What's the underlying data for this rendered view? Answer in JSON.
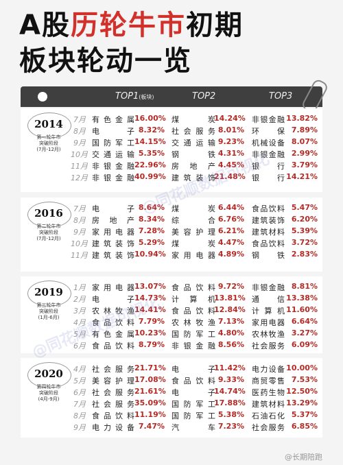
{
  "title": {
    "part1": "A股",
    "part2": "历轮牛市",
    "part3": "初期",
    "line2": "板块轮动一览"
  },
  "header": {
    "top1": "TOP1",
    "top1_note": "(板块)",
    "top2": "TOP2",
    "top3": "TOP3"
  },
  "watermark": "@同花顺数据可视化",
  "credit": "@长期陪跑",
  "colors": {
    "accent": "#d2302a",
    "value": "#b52a25",
    "header_bg": "#3f3f3f"
  },
  "sections": [
    {
      "year": "2014",
      "sub1": "第一轮牛市",
      "sub2": "突破阶段",
      "sub3": "(7月-12月)",
      "rows": [
        {
          "m": "7月",
          "n1": "有色金属",
          "v1": "16.00%",
          "n2": "煤炭",
          "v2": "14.24%",
          "n3": "非银金融",
          "v3": "13.82%"
        },
        {
          "m": "8月",
          "n1": "电子",
          "v1": "8.32%",
          "n2": "社会服务",
          "v2": "8.01%",
          "n3": "环保",
          "v3": "7.89%"
        },
        {
          "m": "9月",
          "n1": "国防军工",
          "v1": "14.15%",
          "n2": "交通运输",
          "v2": "9.23%",
          "n3": "机械设备",
          "v3": "8.07%"
        },
        {
          "m": "10月",
          "n1": "交通运输",
          "v1": "5.35%",
          "n2": "钢铁",
          "v2": "4.31%",
          "n3": "非银金融",
          "v3": "2.99%"
        },
        {
          "m": "11月",
          "n1": "非银金融",
          "v1": "22.96%",
          "n2": "房地产",
          "v2": "4.45%",
          "n3": "银行",
          "v3": "3.79%"
        },
        {
          "m": "12月",
          "n1": "非银金融",
          "v1": "40.99%",
          "n2": "建筑装饰",
          "v2": "21.48%",
          "n3": "银行",
          "v3": "14.21%"
        }
      ]
    },
    {
      "year": "2016",
      "sub1": "第二轮牛市",
      "sub2": "突破阶段",
      "sub3": "(7月-12月)",
      "rows": [
        {
          "m": "7月",
          "n1": "电子",
          "v1": "8.64%",
          "n2": "煤炭",
          "v2": "6.44%",
          "n3": "食品饮料",
          "v3": "5.47%"
        },
        {
          "m": "8月",
          "n1": "房地产",
          "v1": "8.34%",
          "n2": "综合",
          "v2": "6.76%",
          "n3": "建筑装饰",
          "v3": "6.20%"
        },
        {
          "m": "9月",
          "n1": "家用电器",
          "v1": "7.28%",
          "n2": "美容护理",
          "v2": "6.21%",
          "n3": "建筑材料",
          "v3": "5.39%"
        },
        {
          "m": "10月",
          "n1": "建筑装饰",
          "v1": "5.29%",
          "n2": "煤炭",
          "v2": "4.47%",
          "n3": "食品饮料",
          "v3": "3.72%"
        },
        {
          "m": "11月",
          "n1": "建筑装饰",
          "v1": "10.94%",
          "n2": "家用电器",
          "v2": "4.89%",
          "n3": "钢铁",
          "v3": "2.83%"
        }
      ]
    },
    {
      "year": "2019",
      "sub1": "第三轮牛市",
      "sub2": "突破阶段",
      "sub3": "(1月-6月)",
      "rows": [
        {
          "m": "1月",
          "n1": "家用电器",
          "v1": "13.07%",
          "n2": "食品饮料",
          "v2": "9.72%",
          "n3": "非银金融",
          "v3": "8.81%"
        },
        {
          "m": "2月",
          "n1": "电子",
          "v1": "14.73%",
          "n2": "计算机",
          "v2": "13.81%",
          "n3": "通信",
          "v3": "13.38%"
        },
        {
          "m": "3月",
          "n1": "农林牧渔",
          "v1": "14.41%",
          "n2": "食品饮料",
          "v2": "12.84%",
          "n3": "计算机",
          "v3": "11.60%"
        },
        {
          "m": "4月",
          "n1": "食品饮料",
          "v1": "7.79%",
          "n2": "农林牧渔",
          "v2": "7.13%",
          "n3": "家用电器",
          "v3": "6.64%"
        },
        {
          "m": "5月",
          "n1": "有色金属",
          "v1": "10.23%",
          "n2": "国防军工",
          "v2": "4.80%",
          "n3": "农林牧渔",
          "v3": "3.27%"
        },
        {
          "m": "6月",
          "n1": "食品饮料",
          "v1": "8.79%",
          "n2": "非银金融",
          "v2": "8.56%",
          "n3": "社会服务",
          "v3": "6.09%"
        }
      ]
    },
    {
      "year": "2020",
      "sub1": "第四轮牛市",
      "sub2": "突破阶段",
      "sub3": "(4月-9月)",
      "rows": [
        {
          "m": "4月",
          "n1": "社会服务",
          "v1": "21.71%",
          "n2": "电子",
          "v2": "11.42%",
          "n3": "电力设备",
          "v3": "10.00%"
        },
        {
          "m": "5月",
          "n1": "美容护理",
          "v1": "17.08%",
          "n2": "食品饮料",
          "v2": "9.33%",
          "n3": "商贸零售",
          "v3": "7.53%"
        },
        {
          "m": "6月",
          "n1": "社会服务",
          "v1": "21.61%",
          "n2": "电子",
          "v2": "14.74%",
          "n3": "医药生物",
          "v3": "12.50%"
        },
        {
          "m": "7月",
          "n1": "社会服务",
          "v1": "35.09%",
          "n2": "国防军工",
          "v2": "17.88%",
          "n3": "建筑材料",
          "v3": "13.29%"
        },
        {
          "m": "8月",
          "n1": "食品饮料",
          "v1": "11.19%",
          "n2": "国防军工",
          "v2": "5.38%",
          "n3": "石油石化",
          "v3": "5.37%"
        },
        {
          "m": "9月",
          "n1": "电力设备",
          "v1": "7.47%",
          "n2": "汽车",
          "v2": "7.23%",
          "n3": "社会服务",
          "v3": "6.85%"
        }
      ]
    }
  ]
}
